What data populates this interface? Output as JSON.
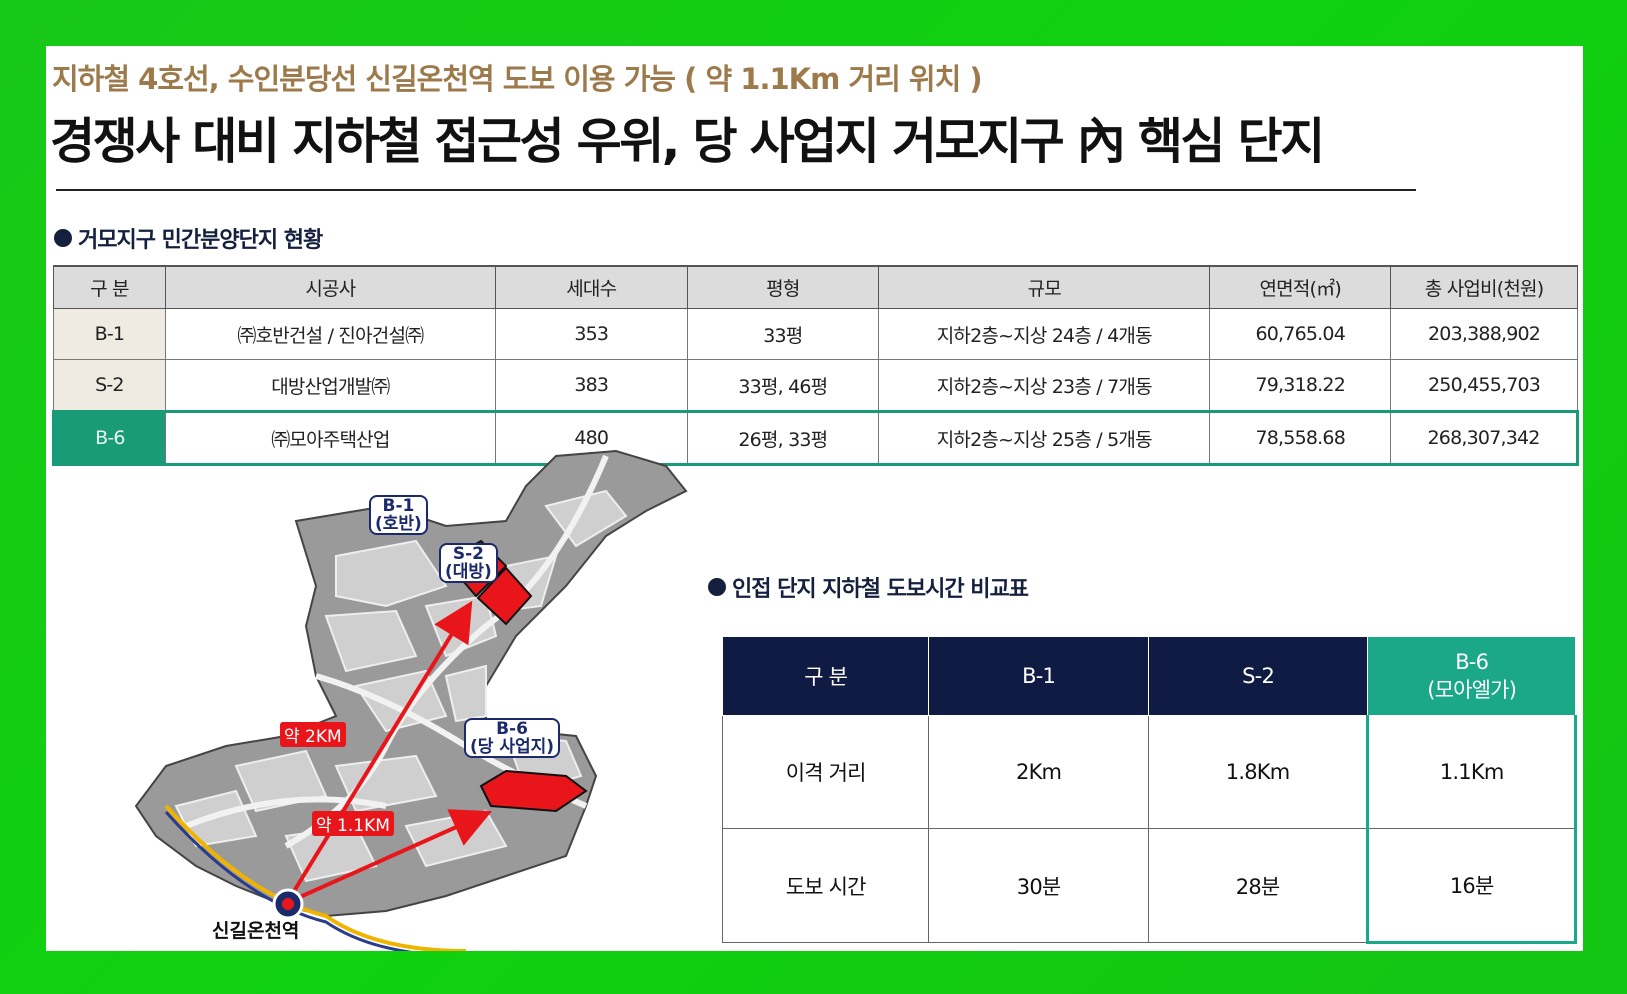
{
  "header": {
    "subtitle": "지하철 4호선, 수인분당선 신길온천역 도보 이용 가능 ( 약 1.1Km 거리 위치 )",
    "headline": "경쟁사 대비 지하철 접근성 우위, 당 사업지 거모지구 內 핵심 단지"
  },
  "section1": {
    "title": "거모지구 민간분양단지 현황",
    "columns": [
      "구 분",
      "시공사",
      "세대수",
      "평형",
      "규모",
      "연면적(㎡)",
      "총 사업비(천원)"
    ],
    "rows": [
      [
        "B-1",
        "㈜호반건설 / 진아건설㈜",
        "353",
        "33평",
        "지하2층~지상 24층 / 4개동",
        "60,765.04",
        "203,388,902"
      ],
      [
        "S-2",
        "대방산업개발㈜",
        "383",
        "33평, 46평",
        "지하2층~지상 23층 / 7개동",
        "79,318.22",
        "250,455,703"
      ],
      [
        "B-6",
        "㈜모아주택산업",
        "480",
        "26평, 33평",
        "지하2층~지상 25층 / 5개동",
        "78,558.68",
        "268,307,342"
      ]
    ],
    "highlight_row": 2
  },
  "map": {
    "labels": {
      "b1": "B-1\n(호반)",
      "s2": "S-2\n(대방)",
      "b6": "B-6\n(당 사업지)",
      "dist_2km": "약 2KM",
      "dist_11km": "약 1.1KM",
      "station": "신길온천역"
    },
    "icons": [
      "subway-station-icon"
    ]
  },
  "section2": {
    "title": "인접 단지 지하철 도보시간 비교표",
    "columns": [
      "구 분",
      "B-1",
      "S-2",
      "B-6\n(모아엘가)"
    ],
    "rows": [
      [
        "이격 거리",
        "2Km",
        "1.8Km",
        "1.1Km"
      ],
      [
        "도보 시간",
        "30분",
        "28분",
        "16분"
      ]
    ]
  },
  "colors": {
    "background_green": "#14c814",
    "title_brown": "#9c7a4c",
    "navy": "#0f1b42",
    "teal": "#1aa888",
    "site_red": "#e8161b"
  }
}
